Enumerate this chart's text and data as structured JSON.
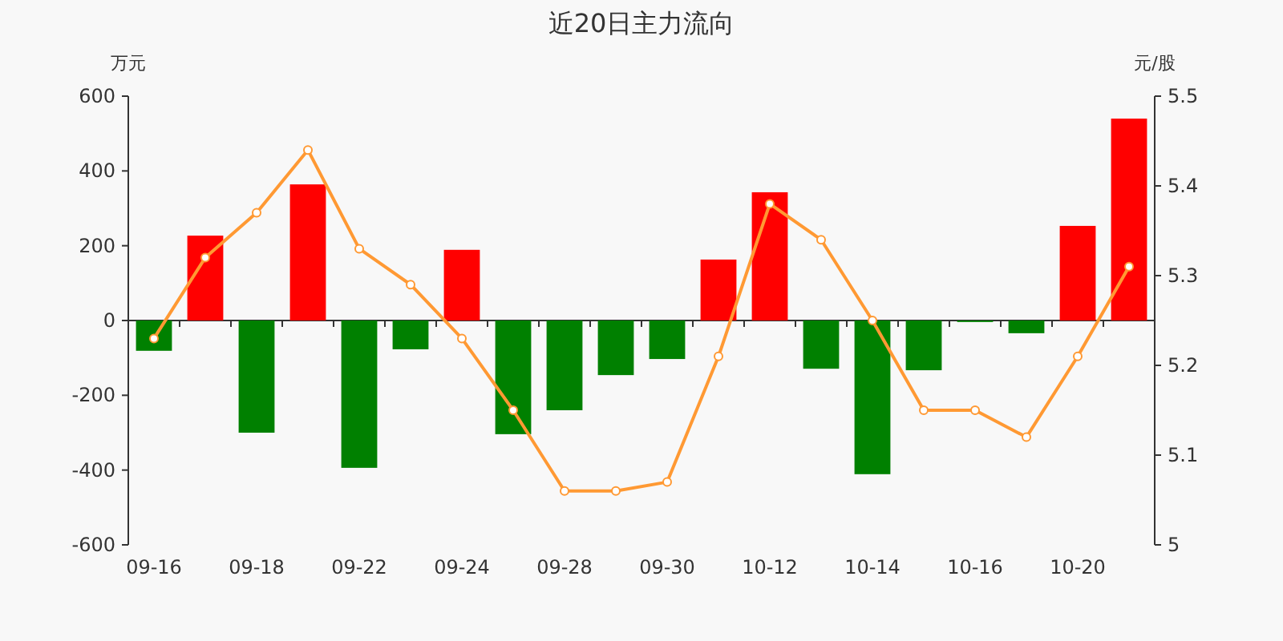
{
  "chart_data": {
    "type": "bar",
    "title": "近20日主力流向",
    "ylabel": "万元",
    "y2label": "元/股",
    "categories": [
      "09-16",
      null,
      "09-18",
      null,
      "09-22",
      null,
      "09-24",
      null,
      "09-28",
      null,
      "09-30",
      null,
      "10-12",
      null,
      "10-14",
      null,
      "10-16",
      null,
      "10-20",
      null
    ],
    "series": [
      {
        "colors": [
          "#008000",
          "#ff0000",
          "#008000",
          "#ff0000",
          "#008000",
          "#008000",
          "#ff0000",
          "#008000",
          "#008000",
          "#008000",
          "#008000",
          "#ff0000",
          "#ff0000",
          "#008000",
          "#008000",
          "#008000",
          "#008000",
          "#008000",
          "#ff0000",
          "#ff0000"
        ],
        "values": [
          -81,
          227,
          -300,
          364,
          -394,
          -77,
          189,
          -304,
          -240,
          -146,
          -103,
          163,
          343,
          -129,
          -411,
          -133,
          -4,
          -34,
          253,
          540
        ]
      },
      {
        "type": "line",
        "axis": "y2",
        "color": "#ff9933",
        "marker": "circle",
        "values": [
          5.23,
          5.32,
          5.37,
          5.44,
          5.33,
          5.29,
          5.23,
          5.15,
          5.06,
          5.06,
          5.07,
          5.21,
          5.38,
          5.34,
          5.25,
          5.15,
          5.15,
          5.12,
          5.21,
          5.31
        ]
      }
    ],
    "ylim": [
      -600,
      600
    ],
    "yticks": [
      -600,
      -400,
      -200,
      0,
      200,
      400,
      600
    ],
    "y2lim": [
      5,
      5.5
    ],
    "y2ticks": [
      5,
      5.1,
      5.2,
      5.3,
      5.4,
      5.5
    ]
  }
}
